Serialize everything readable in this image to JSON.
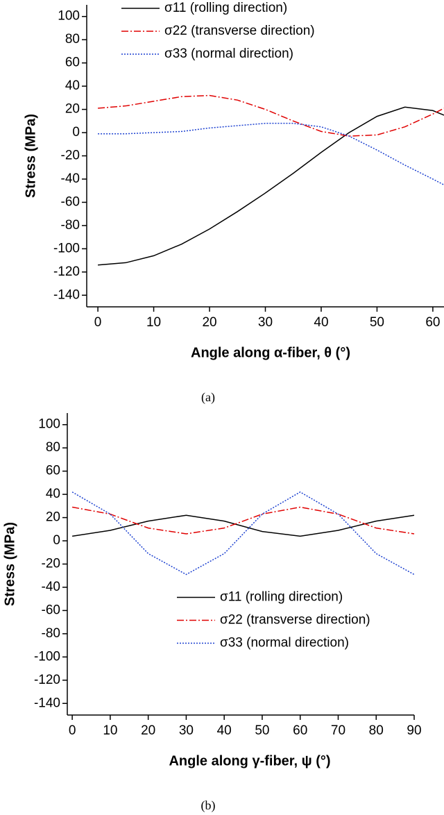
{
  "chart_data": [
    {
      "type": "line",
      "caption": "(a)",
      "xlabel": "Angle along α-fiber, θ (°)",
      "ylabel": "Stress (MPa)",
      "xlim": [
        -2,
        62
      ],
      "ylim": [
        -150,
        110
      ],
      "xticks": [
        0,
        10,
        20,
        30,
        40,
        50,
        60
      ],
      "yticks": [
        100,
        80,
        60,
        40,
        20,
        0,
        -20,
        -40,
        -60,
        -80,
        -100,
        -120,
        -140
      ],
      "legend": "top",
      "x": [
        0,
        5,
        10,
        15,
        20,
        25,
        30,
        35,
        40,
        45,
        50,
        55,
        60,
        62
      ],
      "series": [
        {
          "name": "σ11 (rolling direction)",
          "color": "#000000",
          "linestyle": "solid",
          "values": [
            -114,
            -112,
            -106,
            -96,
            -83,
            -68,
            -52,
            -35,
            -17,
            0,
            14,
            22,
            19,
            15
          ]
        },
        {
          "name": "σ22 (transverse direction)",
          "color": "#e00000",
          "linestyle": "dashdot",
          "values": [
            21,
            23,
            27,
            31,
            32,
            28,
            20,
            10,
            1,
            -3,
            -2,
            5,
            16,
            21
          ]
        },
        {
          "name": "σ33 (normal direction)",
          "color": "#1a3fd0",
          "linestyle": "dotted",
          "values": [
            -1,
            -1,
            0,
            1,
            4,
            6,
            8,
            8,
            5,
            -3,
            -15,
            -28,
            -40,
            -45
          ]
        }
      ]
    },
    {
      "type": "line",
      "caption": "(b)",
      "xlabel": "Angle along γ-fiber, ψ (°)",
      "ylabel": "Stress (MPa)",
      "xlim": [
        -1.3,
        90
      ],
      "ylim": [
        -150,
        110
      ],
      "xticks": [
        0,
        10,
        20,
        30,
        40,
        50,
        60,
        70,
        80,
        90
      ],
      "yticks": [
        100,
        80,
        60,
        40,
        20,
        0,
        -20,
        -40,
        -60,
        -80,
        -100,
        -120,
        -140
      ],
      "legend": "center",
      "x": [
        0,
        10,
        20,
        30,
        40,
        50,
        60,
        70,
        80,
        90
      ],
      "series": [
        {
          "name": "σ11 (rolling direction)",
          "color": "#000000",
          "linestyle": "solid",
          "values": [
            4,
            9,
            17,
            22,
            17,
            8,
            4,
            9,
            17,
            22
          ]
        },
        {
          "name": "σ22 (transverse direction)",
          "color": "#e00000",
          "linestyle": "dashdot",
          "values": [
            29,
            23,
            11,
            6,
            11,
            23,
            29,
            23,
            11,
            6
          ]
        },
        {
          "name": "σ33 (normal direction)",
          "color": "#1a3fd0",
          "linestyle": "dotted",
          "values": [
            42,
            23,
            -11,
            -29,
            -11,
            23,
            42,
            23,
            -11,
            -29
          ]
        }
      ]
    }
  ]
}
